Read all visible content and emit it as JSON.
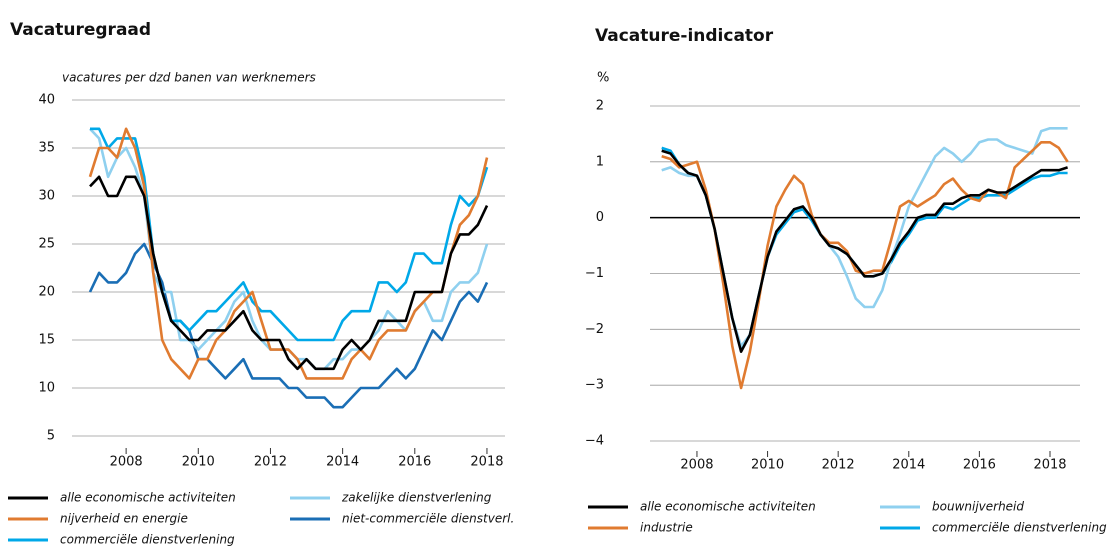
{
  "chart_data": [
    {
      "type": "line",
      "title": "Vacaturegraad",
      "subtitle": "vacatures per dzd banen van werknemers",
      "x": [
        2007,
        2007.25,
        2007.5,
        2007.75,
        2008,
        2008.25,
        2008.5,
        2008.75,
        2009,
        2009.25,
        2009.5,
        2009.75,
        2010,
        2010.25,
        2010.5,
        2010.75,
        2011,
        2011.25,
        2011.5,
        2011.75,
        2012,
        2012.25,
        2012.5,
        2012.75,
        2013,
        2013.25,
        2013.5,
        2013.75,
        2014,
        2014.25,
        2014.5,
        2014.75,
        2015,
        2015.25,
        2015.5,
        2015.75,
        2016,
        2016.25,
        2016.5,
        2016.75,
        2017,
        2017.25,
        2017.5,
        2017.75,
        2018
      ],
      "xlim": [
        2006.5,
        2018.5
      ],
      "xticks": [
        2008,
        2010,
        2012,
        2014,
        2016,
        2018
      ],
      "ylim": [
        5,
        40
      ],
      "yticks": [
        5,
        10,
        15,
        20,
        25,
        30,
        35,
        40
      ],
      "grid": true,
      "series": [
        {
          "name": "alle economische activiteiten",
          "color": "#000000",
          "values": [
            31,
            32,
            30,
            30,
            32,
            32,
            30,
            24,
            20,
            17,
            16,
            15,
            15,
            16,
            16,
            16,
            17,
            18,
            16,
            15,
            15,
            15,
            13,
            12,
            13,
            12,
            12,
            12,
            14,
            15,
            14,
            15,
            17,
            17,
            17,
            17,
            20,
            20,
            20,
            20,
            24,
            26,
            26,
            27,
            29
          ]
        },
        {
          "name": "nijverheid en energie",
          "color": "#e07b30",
          "values": [
            32,
            35,
            35,
            34,
            37,
            35,
            31,
            22,
            15,
            13,
            12,
            11,
            13,
            13,
            15,
            16,
            18,
            19,
            20,
            17,
            14,
            14,
            14,
            13,
            11,
            11,
            11,
            11,
            11,
            13,
            14,
            13,
            15,
            16,
            16,
            16,
            18,
            19,
            20,
            20,
            24,
            27,
            28,
            30,
            34
          ]
        },
        {
          "name": "commerciële dienstverlening",
          "color": "#00a8e8",
          "values": [
            37,
            37,
            35,
            36,
            36,
            36,
            32,
            24,
            20,
            17,
            17,
            16,
            17,
            18,
            18,
            19,
            20,
            21,
            19,
            18,
            18,
            17,
            16,
            15,
            15,
            15,
            15,
            15,
            17,
            18,
            18,
            18,
            21,
            21,
            20,
            21,
            24,
            24,
            23,
            23,
            27,
            30,
            29,
            30,
            33
          ]
        },
        {
          "name": "zakelijke dienstverlening",
          "color": "#8fd0ef",
          "values": [
            37,
            36,
            32,
            34,
            35,
            33,
            30,
            22,
            20,
            20,
            15,
            15,
            14,
            15,
            16,
            17,
            19,
            20,
            17,
            15,
            14,
            14,
            14,
            13,
            13,
            12,
            12,
            13,
            13,
            14,
            14,
            15,
            16,
            18,
            17,
            16,
            18,
            19,
            17,
            17,
            20,
            21,
            21,
            22,
            25
          ]
        },
        {
          "name": "niet-commerciële dienstverl.",
          "color": "#1a6eb5",
          "values": [
            20,
            22,
            21,
            21,
            22,
            24,
            25,
            23,
            21,
            17,
            17,
            16,
            13,
            13,
            12,
            11,
            12,
            13,
            11,
            11,
            11,
            11,
            10,
            10,
            9,
            9,
            9,
            8,
            8,
            9,
            10,
            10,
            10,
            11,
            12,
            11,
            12,
            14,
            16,
            15,
            17,
            19,
            20,
            19,
            21
          ]
        }
      ]
    },
    {
      "type": "line",
      "title": "Vacature-indicator",
      "ylabel": "%",
      "x": [
        2007,
        2007.25,
        2007.5,
        2007.75,
        2008,
        2008.25,
        2008.5,
        2008.75,
        2009,
        2009.25,
        2009.5,
        2009.75,
        2010,
        2010.25,
        2010.5,
        2010.75,
        2011,
        2011.25,
        2011.5,
        2011.75,
        2012,
        2012.25,
        2012.5,
        2012.75,
        2013,
        2013.25,
        2013.5,
        2013.75,
        2014,
        2014.25,
        2014.5,
        2014.75,
        2015,
        2015.25,
        2015.5,
        2015.75,
        2016,
        2016.25,
        2016.5,
        2016.75,
        2017,
        2017.25,
        2017.5,
        2017.75,
        2018,
        2018.25,
        2018.5
      ],
      "xlim": [
        2006.67,
        2018.85
      ],
      "xticks": [
        2008,
        2010,
        2012,
        2014,
        2016,
        2018
      ],
      "ylim": [
        -4,
        2
      ],
      "yticks": [
        {
          "value": -4,
          "label": "−4"
        },
        {
          "value": -3,
          "label": "−3"
        },
        {
          "value": -2,
          "label": "−2"
        },
        {
          "value": -1,
          "label": "−1"
        },
        0,
        1,
        2
      ],
      "grid": true,
      "zero_line": true,
      "series": [
        {
          "name": "alle economische activiteiten",
          "color": "#000000",
          "values": [
            1.2,
            1.15,
            0.95,
            0.8,
            0.75,
            0.4,
            -0.2,
            -1.0,
            -1.8,
            -2.4,
            -2.1,
            -1.4,
            -0.7,
            -0.25,
            -0.05,
            0.15,
            0.2,
            0.0,
            -0.3,
            -0.5,
            -0.55,
            -0.65,
            -0.85,
            -1.05,
            -1.05,
            -1.0,
            -0.75,
            -0.45,
            -0.25,
            0.0,
            0.05,
            0.05,
            0.25,
            0.25,
            0.35,
            0.4,
            0.4,
            0.5,
            0.45,
            0.45,
            0.55,
            0.65,
            0.75,
            0.85,
            0.85,
            0.85,
            0.9
          ]
        },
        {
          "name": "industrie",
          "color": "#e07b30",
          "values": [
            1.1,
            1.05,
            0.9,
            0.95,
            1.0,
            0.5,
            -0.2,
            -1.2,
            -2.3,
            -3.05,
            -2.4,
            -1.5,
            -0.5,
            0.2,
            0.5,
            0.75,
            0.6,
            0.05,
            -0.3,
            -0.45,
            -0.45,
            -0.6,
            -0.95,
            -1.0,
            -0.95,
            -0.95,
            -0.4,
            0.2,
            0.3,
            0.2,
            0.3,
            0.4,
            0.6,
            0.7,
            0.5,
            0.35,
            0.3,
            0.5,
            0.45,
            0.35,
            0.9,
            1.05,
            1.2,
            1.35,
            1.35,
            1.25,
            1.0
          ]
        },
        {
          "name": "bouwnijverheid",
          "color": "#8fd0ef",
          "values": [
            0.85,
            0.9,
            0.8,
            0.75,
            0.75,
            0.4,
            -0.2,
            -1.0,
            -1.8,
            -2.3,
            -2.1,
            -1.4,
            -0.7,
            -0.25,
            -0.05,
            0.15,
            0.2,
            0.0,
            -0.3,
            -0.5,
            -0.7,
            -1.05,
            -1.45,
            -1.6,
            -1.6,
            -1.3,
            -0.75,
            -0.3,
            0.2,
            0.5,
            0.8,
            1.1,
            1.25,
            1.15,
            1.0,
            1.15,
            1.35,
            1.4,
            1.4,
            1.3,
            1.25,
            1.2,
            1.15,
            1.55,
            1.6,
            1.6,
            1.6
          ]
        },
        {
          "name": "commerciële dienstverlening",
          "color": "#00a8e8",
          "values": [
            1.25,
            1.2,
            0.95,
            0.8,
            0.75,
            0.4,
            -0.2,
            -1.0,
            -1.8,
            -2.35,
            -2.1,
            -1.4,
            -0.7,
            -0.3,
            -0.1,
            0.1,
            0.15,
            -0.05,
            -0.3,
            -0.5,
            -0.55,
            -0.65,
            -0.85,
            -1.05,
            -1.05,
            -1.0,
            -0.8,
            -0.5,
            -0.3,
            -0.05,
            0.0,
            0.0,
            0.2,
            0.15,
            0.25,
            0.35,
            0.35,
            0.4,
            0.4,
            0.4,
            0.5,
            0.6,
            0.7,
            0.75,
            0.75,
            0.8,
            0.8
          ]
        }
      ]
    }
  ]
}
